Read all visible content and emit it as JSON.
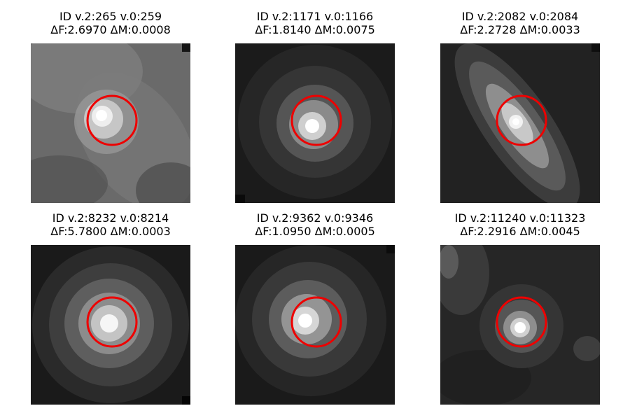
{
  "colors": {
    "background": "#ffffff",
    "marker_circle": "#ee0000"
  },
  "panels": [
    {
      "id_line": "ID v.2:265 v.0:259",
      "delta_line": "ΔF:2.6970 ΔM:0.0008",
      "image": "grayscale-star-cutout",
      "marker": "red-circle"
    },
    {
      "id_line": "ID v.2:1171 v.0:1166",
      "delta_line": "ΔF:1.8140 ΔM:0.0075",
      "image": "grayscale-star-cutout",
      "marker": "red-circle"
    },
    {
      "id_line": "ID v.2:2082 v.0:2084",
      "delta_line": "ΔF:2.2728 ΔM:0.0033",
      "image": "grayscale-star-cutout",
      "marker": "red-circle"
    },
    {
      "id_line": "ID v.2:8232 v.0:8214",
      "delta_line": "ΔF:5.7800 ΔM:0.0003",
      "image": "grayscale-star-cutout",
      "marker": "red-circle"
    },
    {
      "id_line": "ID v.2:9362 v.0:9346",
      "delta_line": "ΔF:1.0950 ΔM:0.0005",
      "image": "grayscale-star-cutout",
      "marker": "red-circle"
    },
    {
      "id_line": "ID v.2:11240 v.0:11323",
      "delta_line": "ΔF:2.2916 ΔM:0.0045",
      "image": "grayscale-star-cutout",
      "marker": "red-circle"
    }
  ]
}
